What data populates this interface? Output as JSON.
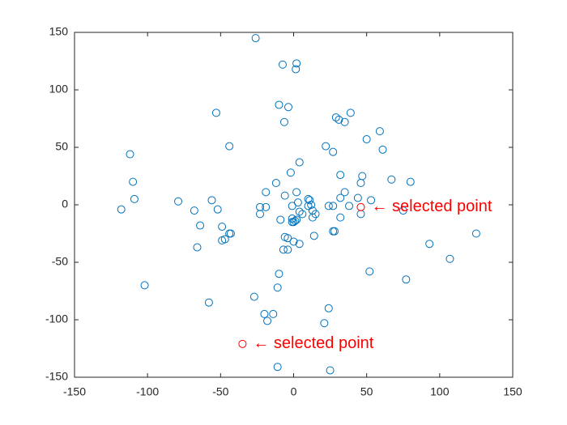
{
  "chart_data": {
    "type": "scatter",
    "series": [
      {
        "color": "#0072bd",
        "x": [
          -26,
          -7.5,
          2,
          1.5,
          -53,
          -10,
          -3.6,
          -6.4,
          29,
          31,
          35,
          39,
          59,
          50,
          61,
          27,
          22,
          -44,
          -112,
          -110,
          -109,
          -118,
          -79,
          -56,
          -68,
          -52,
          -64,
          -49,
          -47,
          -49,
          -43,
          -44,
          -66,
          -102,
          -58,
          -27,
          -11,
          -10,
          -20,
          -18,
          -14,
          -11,
          21,
          24,
          25,
          52,
          77,
          93,
          107,
          125,
          80,
          67,
          47,
          46,
          32,
          53,
          44,
          46,
          75,
          35,
          38,
          32,
          32,
          27,
          24,
          27,
          28,
          14,
          4,
          0,
          -4,
          -7,
          -6,
          -4,
          -9,
          -1,
          1,
          0,
          2,
          -1,
          4,
          6,
          10,
          11,
          10,
          12,
          13,
          15,
          13,
          3,
          -1,
          -6,
          -2,
          4,
          2,
          -12,
          -19,
          -23,
          -19,
          -23
        ],
        "y": [
          145,
          122,
          123,
          118,
          80,
          87,
          85,
          72,
          76,
          74,
          72,
          80,
          64,
          57,
          48,
          46,
          51,
          51,
          44,
          20,
          5,
          -4,
          3,
          4,
          -5,
          -4,
          -18,
          -19,
          -30,
          -31,
          -25,
          -25,
          -37,
          -70,
          -85,
          -80,
          -72,
          -60,
          -95,
          -101,
          -95,
          -141,
          -103,
          -90,
          -144,
          -58,
          -65,
          -34,
          -47,
          -25,
          20,
          22,
          25,
          19,
          26,
          4,
          6,
          -8,
          -5,
          11,
          -1,
          6,
          -11,
          -1,
          -1,
          -23,
          -23,
          -27,
          -34,
          -32,
          -39,
          -39,
          -28,
          -29,
          -13,
          -12,
          -14,
          -15,
          -13,
          -15,
          -6,
          -8,
          -1,
          4,
          5,
          0,
          -11,
          -8,
          -5,
          2,
          -1,
          8,
          28,
          37,
          11,
          19,
          11,
          -2,
          -2,
          -8
        ]
      },
      {
        "color": "#ff0000",
        "x": [
          46,
          -35
        ],
        "y": [
          -2,
          -121
        ]
      }
    ],
    "annotations": [
      "← selected point",
      "← selected point"
    ],
    "annotation_color": "#ff0000",
    "xlim": [
      -150,
      150
    ],
    "xticks": [
      -150,
      -100,
      -50,
      0,
      50,
      100,
      150
    ],
    "ylim": [
      -150,
      150
    ],
    "yticks": [
      -150,
      -100,
      -50,
      0,
      50,
      100,
      150
    ]
  }
}
